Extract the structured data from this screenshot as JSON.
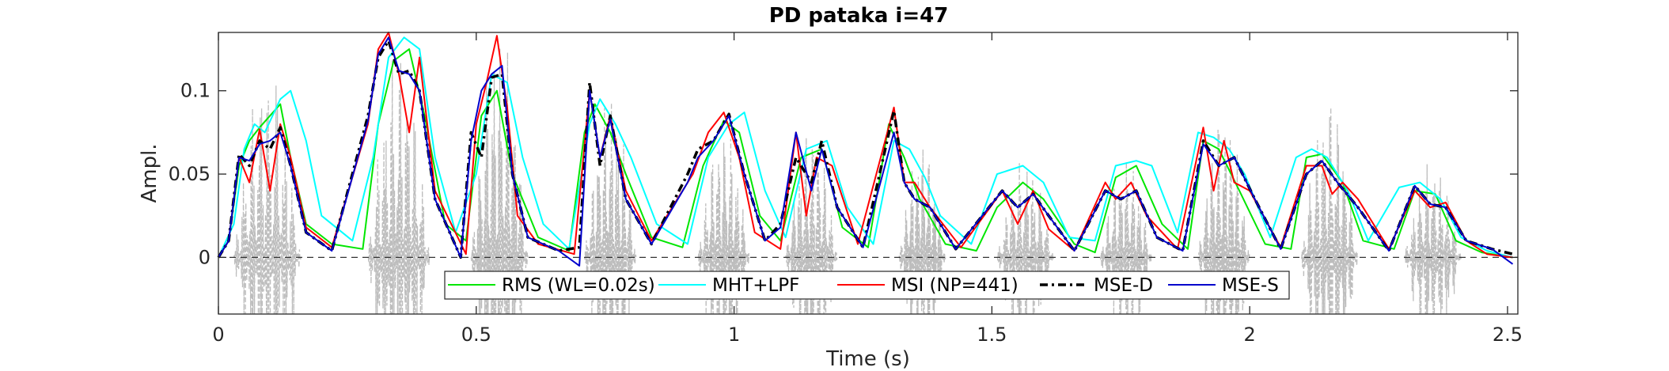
{
  "chart_data": {
    "type": "line",
    "title": "PD pataka i=47",
    "xlabel": "Time (s)",
    "ylabel": "Ampl.",
    "xlim": [
      0,
      2.52
    ],
    "ylim": [
      -0.034,
      0.135
    ],
    "xticks": [
      0,
      0.5,
      1,
      1.5,
      2,
      2.5
    ],
    "xtick_labels": [
      "0",
      "0.5",
      "1",
      "1.5",
      "2",
      "2.5"
    ],
    "yticks": [
      0,
      0.05,
      0.1
    ],
    "ytick_labels": [
      "0",
      "0.05",
      "0.1"
    ],
    "grid": false,
    "legend_position": "bottom-center",
    "zero_line": true,
    "waveform": {
      "color": "#bdbdbd",
      "bursts": [
        {
          "start": 0.03,
          "end": 0.16,
          "amp": 0.12
        },
        {
          "start": 0.29,
          "end": 0.41,
          "amp": 0.13
        },
        {
          "start": 0.49,
          "end": 0.6,
          "amp": 0.14
        },
        {
          "start": 0.71,
          "end": 0.81,
          "amp": 0.1
        },
        {
          "start": 0.93,
          "end": 1.03,
          "amp": 0.08
        },
        {
          "start": 1.1,
          "end": 1.2,
          "amp": 0.08
        },
        {
          "start": 1.32,
          "end": 1.41,
          "amp": 0.07
        },
        {
          "start": 1.51,
          "end": 1.62,
          "amp": 0.06
        },
        {
          "start": 1.71,
          "end": 1.81,
          "amp": 0.06
        },
        {
          "start": 1.9,
          "end": 2.0,
          "amp": 0.09
        },
        {
          "start": 2.1,
          "end": 2.21,
          "amp": 0.1
        },
        {
          "start": 2.3,
          "end": 2.41,
          "amp": 0.06
        }
      ]
    },
    "series": [
      {
        "name": "RMS (WL=0.02s)",
        "color": "#00e600",
        "dash": "none",
        "width": 2,
        "x": [
          0,
          0.02,
          0.04,
          0.06,
          0.08,
          0.1,
          0.12,
          0.14,
          0.17,
          0.22,
          0.28,
          0.31,
          0.34,
          0.37,
          0.4,
          0.44,
          0.48,
          0.51,
          0.54,
          0.57,
          0.62,
          0.68,
          0.71,
          0.73,
          0.76,
          0.79,
          0.84,
          0.9,
          0.94,
          0.98,
          1.01,
          1.05,
          1.09,
          1.13,
          1.17,
          1.21,
          1.26,
          1.3,
          1.33,
          1.36,
          1.41,
          1.47,
          1.51,
          1.56,
          1.6,
          1.66,
          1.7,
          1.74,
          1.78,
          1.83,
          1.88,
          1.91,
          1.94,
          1.98,
          2.03,
          2.08,
          2.11,
          2.14,
          2.18,
          2.22,
          2.28,
          2.32,
          2.36,
          2.4,
          2.45,
          2.51
        ],
        "y": [
          0.0,
          0.01,
          0.055,
          0.07,
          0.078,
          0.085,
          0.092,
          0.06,
          0.02,
          0.008,
          0.005,
          0.08,
          0.118,
          0.125,
          0.085,
          0.02,
          0.01,
          0.085,
          0.1,
          0.05,
          0.012,
          0.004,
          0.075,
          0.092,
          0.075,
          0.05,
          0.012,
          0.006,
          0.055,
          0.082,
          0.075,
          0.025,
          0.01,
          0.06,
          0.065,
          0.018,
          0.006,
          0.08,
          0.06,
          0.035,
          0.008,
          0.004,
          0.03,
          0.045,
          0.035,
          0.008,
          0.003,
          0.048,
          0.055,
          0.02,
          0.005,
          0.07,
          0.065,
          0.04,
          0.008,
          0.005,
          0.06,
          0.062,
          0.045,
          0.01,
          0.005,
          0.04,
          0.038,
          0.01,
          0.003,
          0.0
        ]
      },
      {
        "name": "MHT+LPF",
        "color": "#00ffff",
        "dash": "none",
        "width": 2,
        "x": [
          0,
          0.03,
          0.05,
          0.07,
          0.09,
          0.12,
          0.14,
          0.17,
          0.2,
          0.26,
          0.3,
          0.33,
          0.36,
          0.39,
          0.42,
          0.46,
          0.5,
          0.53,
          0.56,
          0.59,
          0.63,
          0.68,
          0.72,
          0.74,
          0.77,
          0.8,
          0.85,
          0.91,
          0.95,
          0.99,
          1.02,
          1.06,
          1.1,
          1.14,
          1.18,
          1.22,
          1.27,
          1.31,
          1.34,
          1.37,
          1.4,
          1.46,
          1.51,
          1.56,
          1.6,
          1.65,
          1.7,
          1.74,
          1.78,
          1.81,
          1.86,
          1.9,
          1.93,
          1.96,
          1.99,
          2.04,
          2.09,
          2.12,
          2.15,
          2.19,
          2.23,
          2.29,
          2.33,
          2.37,
          2.41,
          2.46,
          2.51
        ],
        "y": [
          0.0,
          0.02,
          0.065,
          0.08,
          0.075,
          0.095,
          0.1,
          0.07,
          0.025,
          0.01,
          0.06,
          0.12,
          0.132,
          0.125,
          0.06,
          0.015,
          0.05,
          0.11,
          0.105,
          0.06,
          0.02,
          0.005,
          0.08,
          0.095,
          0.08,
          0.06,
          0.02,
          0.008,
          0.06,
          0.08,
          0.087,
          0.04,
          0.012,
          0.065,
          0.07,
          0.03,
          0.008,
          0.07,
          0.065,
          0.048,
          0.025,
          0.008,
          0.05,
          0.055,
          0.045,
          0.012,
          0.01,
          0.055,
          0.058,
          0.055,
          0.015,
          0.075,
          0.072,
          0.065,
          0.05,
          0.012,
          0.06,
          0.065,
          0.06,
          0.04,
          0.01,
          0.042,
          0.045,
          0.035,
          0.012,
          0.004,
          0.0
        ]
      },
      {
        "name": "MSI (NP=441)",
        "color": "#ff0000",
        "dash": "none",
        "width": 2,
        "x": [
          0,
          0.02,
          0.04,
          0.06,
          0.08,
          0.1,
          0.12,
          0.14,
          0.17,
          0.22,
          0.29,
          0.31,
          0.33,
          0.35,
          0.37,
          0.39,
          0.42,
          0.48,
          0.5,
          0.52,
          0.54,
          0.56,
          0.58,
          0.62,
          0.69,
          0.72,
          0.74,
          0.76,
          0.79,
          0.84,
          0.92,
          0.95,
          0.98,
          1.01,
          1.04,
          1.09,
          1.12,
          1.14,
          1.16,
          1.19,
          1.24,
          1.31,
          1.33,
          1.35,
          1.38,
          1.44,
          1.52,
          1.55,
          1.58,
          1.61,
          1.66,
          1.72,
          1.74,
          1.77,
          1.8,
          1.86,
          1.91,
          1.93,
          1.95,
          1.97,
          2.0,
          2.06,
          2.11,
          2.14,
          2.16,
          2.18,
          2.21,
          2.27,
          2.32,
          2.35,
          2.38,
          2.42,
          2.46,
          2.51
        ],
        "y": [
          0.0,
          0.01,
          0.06,
          0.045,
          0.077,
          0.04,
          0.08,
          0.06,
          0.018,
          0.006,
          0.08,
          0.125,
          0.135,
          0.11,
          0.075,
          0.12,
          0.04,
          0.002,
          0.08,
          0.105,
          0.133,
          0.09,
          0.025,
          0.008,
          0.002,
          0.1,
          0.06,
          0.085,
          0.04,
          0.01,
          0.05,
          0.075,
          0.087,
          0.06,
          0.015,
          0.005,
          0.075,
          0.025,
          0.06,
          0.055,
          0.008,
          0.09,
          0.045,
          0.045,
          0.03,
          0.006,
          0.04,
          0.02,
          0.04,
          0.017,
          0.004,
          0.045,
          0.035,
          0.045,
          0.025,
          0.005,
          0.078,
          0.04,
          0.07,
          0.045,
          0.04,
          0.006,
          0.055,
          0.055,
          0.038,
          0.045,
          0.035,
          0.005,
          0.04,
          0.03,
          0.033,
          0.01,
          0.002,
          0.0
        ]
      },
      {
        "name": "MSE-D",
        "color": "#000000",
        "dash": "10,5,3,5",
        "width": 3.5,
        "x": [
          0,
          0.02,
          0.04,
          0.06,
          0.08,
          0.1,
          0.12,
          0.14,
          0.17,
          0.22,
          0.29,
          0.31,
          0.33,
          0.35,
          0.37,
          0.39,
          0.42,
          0.47,
          0.49,
          0.51,
          0.53,
          0.55,
          0.57,
          0.6,
          0.66,
          0.7,
          0.72,
          0.74,
          0.76,
          0.79,
          0.84,
          0.91,
          0.93,
          0.96,
          0.99,
          1.02,
          1.06,
          1.09,
          1.12,
          1.15,
          1.17,
          1.2,
          1.25,
          1.31,
          1.33,
          1.35,
          1.38,
          1.43,
          1.52,
          1.55,
          1.58,
          1.61,
          1.66,
          1.72,
          1.75,
          1.78,
          1.82,
          1.87,
          1.91,
          1.94,
          1.97,
          2.01,
          2.06,
          2.11,
          2.14,
          2.17,
          2.21,
          2.27,
          2.32,
          2.35,
          2.38,
          2.42,
          2.47,
          2.51
        ],
        "y": [
          0.0,
          0.01,
          0.062,
          0.055,
          0.07,
          0.065,
          0.078,
          0.055,
          0.015,
          0.004,
          0.085,
          0.12,
          0.13,
          0.11,
          0.112,
          0.1,
          0.035,
          0.0,
          0.075,
          0.06,
          0.108,
          0.11,
          0.05,
          0.012,
          0.004,
          0.006,
          0.105,
          0.055,
          0.085,
          0.035,
          0.008,
          0.05,
          0.065,
          0.07,
          0.086,
          0.05,
          0.01,
          0.02,
          0.06,
          0.045,
          0.07,
          0.03,
          0.006,
          0.088,
          0.045,
          0.035,
          0.03,
          0.005,
          0.04,
          0.03,
          0.038,
          0.025,
          0.004,
          0.04,
          0.035,
          0.04,
          0.012,
          0.004,
          0.07,
          0.055,
          0.06,
          0.035,
          0.005,
          0.05,
          0.058,
          0.045,
          0.03,
          0.004,
          0.043,
          0.032,
          0.03,
          0.01,
          0.005,
          0.002
        ]
      },
      {
        "name": "MSE-S",
        "color": "#0000cc",
        "dash": "none",
        "width": 2,
        "x": [
          0,
          0.02,
          0.04,
          0.06,
          0.08,
          0.1,
          0.12,
          0.14,
          0.17,
          0.22,
          0.29,
          0.31,
          0.33,
          0.35,
          0.37,
          0.39,
          0.42,
          0.47,
          0.49,
          0.51,
          0.53,
          0.55,
          0.57,
          0.6,
          0.66,
          0.7,
          0.72,
          0.74,
          0.76,
          0.79,
          0.84,
          0.91,
          0.93,
          0.96,
          0.99,
          1.02,
          1.06,
          1.09,
          1.12,
          1.15,
          1.17,
          1.2,
          1.25,
          1.31,
          1.33,
          1.35,
          1.38,
          1.43,
          1.52,
          1.55,
          1.58,
          1.61,
          1.66,
          1.72,
          1.75,
          1.78,
          1.82,
          1.87,
          1.91,
          1.94,
          1.97,
          2.01,
          2.06,
          2.11,
          2.14,
          2.17,
          2.21,
          2.27,
          2.32,
          2.35,
          2.38,
          2.42,
          2.47,
          2.51
        ],
        "y": [
          0.0,
          0.01,
          0.06,
          0.058,
          0.068,
          0.07,
          0.075,
          0.055,
          0.015,
          0.004,
          0.082,
          0.122,
          0.132,
          0.112,
          0.11,
          0.1,
          0.035,
          0.0,
          0.07,
          0.1,
          0.11,
          0.115,
          0.05,
          0.012,
          0.004,
          -0.005,
          0.1,
          0.06,
          0.083,
          0.035,
          0.008,
          0.045,
          0.06,
          0.07,
          0.085,
          0.05,
          0.01,
          0.018,
          0.075,
          0.04,
          0.065,
          0.03,
          0.006,
          0.075,
          0.045,
          0.035,
          0.03,
          0.005,
          0.04,
          0.03,
          0.038,
          0.025,
          0.004,
          0.04,
          0.035,
          0.04,
          0.012,
          0.004,
          0.068,
          0.055,
          0.06,
          0.035,
          0.005,
          0.05,
          0.058,
          0.045,
          0.03,
          0.004,
          0.043,
          0.032,
          0.03,
          0.01,
          0.005,
          -0.004
        ]
      }
    ]
  }
}
